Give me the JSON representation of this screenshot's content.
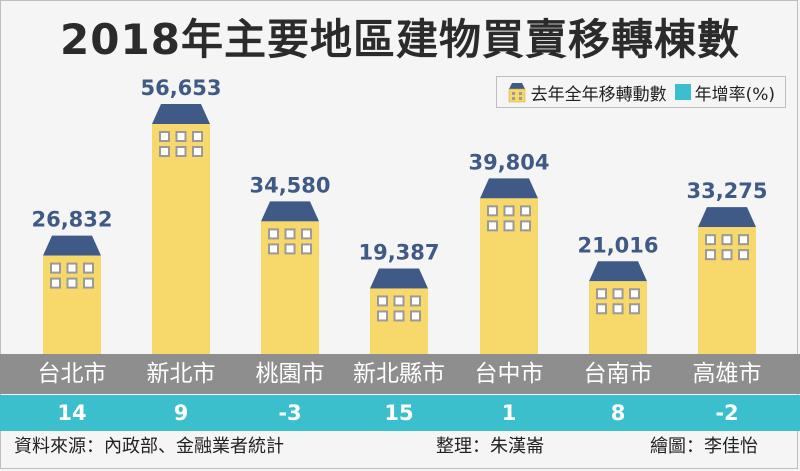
{
  "title": "2018年主要地區建物買賣移轉棟數",
  "legend": {
    "transfers_label": "去年全年移轉動數",
    "growth_label": "年增率(%)"
  },
  "colors": {
    "building": "#f7d86a",
    "roof": "#3f5a86",
    "window": "#9a9a9a",
    "growth_strip": "#3bbfcc",
    "city_strip": "#8e8e8e",
    "value_text": "#3f5a86"
  },
  "chart_data": {
    "type": "bar",
    "categories": [
      "台北市",
      "新北市",
      "桃園市",
      "新北縣市",
      "台中市",
      "台南市",
      "高雄市"
    ],
    "series": [
      {
        "name": "去年全年移轉動數",
        "values": [
          26832,
          56653,
          34580,
          19387,
          39804,
          21016,
          33275
        ],
        "labels": [
          "26,832",
          "56,653",
          "34,580",
          "19,387",
          "39,804",
          "21,016",
          "33,275"
        ]
      },
      {
        "name": "年增率(%)",
        "values": [
          14,
          9,
          -3,
          15,
          1,
          8,
          -2
        ],
        "labels": [
          "14",
          "9",
          "-3",
          "15",
          "1",
          "8",
          "-2"
        ]
      }
    ]
  },
  "footer": {
    "source": "資料來源：內政部、金融業者統計",
    "editor": "整理：朱漢崙",
    "illustrator": "繪圖：李佳怡"
  }
}
